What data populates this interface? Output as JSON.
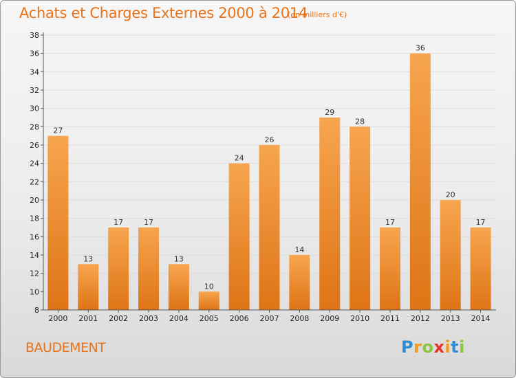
{
  "header": {
    "title": "Achats et Charges Externes 2000 à 2014",
    "subtitle": "(en milliers d'€)"
  },
  "footer": {
    "commune": "BAUDEMENT",
    "logo": [
      "P",
      "r",
      "o",
      "x",
      "i",
      "t",
      "i"
    ]
  },
  "colors": {
    "accent": "#e8731a",
    "bar_light": "#f7a54f",
    "bar_dark": "#de7416",
    "logo_letters": [
      "#2f8fd5",
      "#f39a1e",
      "#8cc63f",
      "#e6332a",
      "#f39a1e",
      "#2f8fd5",
      "#8cc63f"
    ]
  },
  "chart_data": {
    "type": "bar",
    "title": "Achats et Charges Externes 2000 à 2014",
    "subtitle": "(en milliers d'€)",
    "categories": [
      "2000",
      "2001",
      "2002",
      "2003",
      "2004",
      "2005",
      "2006",
      "2007",
      "2008",
      "2009",
      "2010",
      "2011",
      "2012",
      "2013",
      "2014"
    ],
    "values": [
      27,
      13,
      17,
      17,
      13,
      10,
      24,
      26,
      14,
      29,
      28,
      17,
      36,
      20,
      17
    ],
    "ylim": [
      8,
      38
    ],
    "yticks": [
      8,
      10,
      12,
      14,
      16,
      18,
      20,
      22,
      24,
      26,
      28,
      30,
      32,
      34,
      36,
      38
    ],
    "grid": true
  }
}
